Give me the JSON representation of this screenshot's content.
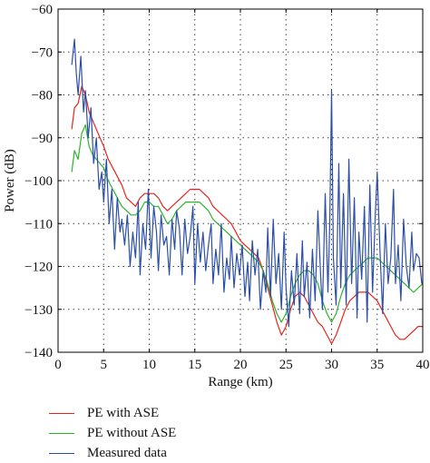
{
  "chart_data": {
    "type": "line",
    "title": "",
    "xlabel": "Range (km)",
    "ylabel": "Power (dB)",
    "xlim": [
      0,
      40
    ],
    "ylim": [
      -140,
      -60
    ],
    "xticks": [
      0,
      5,
      10,
      15,
      20,
      25,
      30,
      35,
      40
    ],
    "yticks": [
      -60,
      -70,
      -80,
      -90,
      -100,
      -110,
      -120,
      -130,
      -140
    ],
    "grid": true,
    "legend_placement": "bottom-left, below the axes",
    "series": [
      {
        "name": "PE with ASE",
        "color": "#e8231c",
        "x": [
          1.5,
          1.8,
          2.2,
          2.6,
          3.0,
          3.4,
          3.8,
          4.2,
          4.6,
          5.0,
          5.5,
          6.0,
          6.5,
          7.0,
          7.5,
          8.0,
          8.5,
          9.0,
          9.5,
          10.0,
          10.5,
          11.0,
          11.5,
          12.0,
          12.5,
          13.0,
          13.5,
          14.0,
          14.5,
          15.0,
          15.5,
          16.0,
          16.5,
          17.0,
          17.5,
          18.0,
          18.5,
          19.0,
          19.5,
          20.0,
          20.5,
          21.0,
          21.5,
          22.0,
          22.5,
          23.0,
          23.5,
          24.0,
          24.5,
          25.0,
          25.5,
          26.0,
          26.5,
          27.0,
          27.5,
          28.0,
          28.5,
          29.0,
          29.5,
          30.0,
          30.5,
          31.0,
          31.5,
          32.0,
          32.5,
          33.0,
          33.5,
          34.0,
          34.5,
          35.0,
          35.5,
          36.0,
          36.5,
          37.0,
          37.5,
          38.0,
          38.5,
          39.0,
          39.5,
          40.0
        ],
        "values": [
          -88,
          -83,
          -82,
          -78,
          -80,
          -84,
          -86,
          -88,
          -90,
          -92,
          -95,
          -97,
          -99,
          -101,
          -104,
          -105,
          -106,
          -104,
          -103,
          -103,
          -103,
          -104,
          -106,
          -107,
          -106,
          -105,
          -104,
          -103,
          -102,
          -102,
          -102,
          -103,
          -104,
          -106,
          -107,
          -108,
          -109,
          -110,
          -112,
          -114,
          -115,
          -116,
          -117,
          -118,
          -121,
          -125,
          -129,
          -133,
          -136,
          -134,
          -130,
          -127,
          -126,
          -127,
          -129,
          -131,
          -133,
          -134,
          -136,
          -138,
          -136,
          -133,
          -130,
          -128,
          -127,
          -126,
          -126,
          -126,
          -127,
          -128,
          -130,
          -132,
          -134,
          -136,
          -137,
          -137,
          -136,
          -135,
          -134,
          -134
        ]
      },
      {
        "name": "PE without ASE",
        "color": "#2bb52b",
        "x": [
          1.5,
          1.8,
          2.2,
          2.6,
          3.0,
          3.4,
          3.8,
          4.2,
          4.6,
          5.0,
          5.5,
          6.0,
          6.5,
          7.0,
          7.5,
          8.0,
          8.5,
          9.0,
          9.5,
          10.0,
          10.5,
          11.0,
          11.5,
          12.0,
          12.5,
          13.0,
          13.5,
          14.0,
          14.5,
          15.0,
          15.5,
          16.0,
          16.5,
          17.0,
          17.5,
          18.0,
          18.5,
          19.0,
          19.5,
          20.0,
          20.5,
          21.0,
          21.5,
          22.0,
          22.5,
          23.0,
          23.5,
          24.0,
          24.5,
          25.0,
          25.5,
          26.0,
          26.5,
          27.0,
          27.5,
          28.0,
          28.5,
          29.0,
          29.5,
          30.0,
          30.5,
          31.0,
          31.5,
          32.0,
          32.5,
          33.0,
          33.5,
          34.0,
          34.5,
          35.0,
          35.5,
          36.0,
          36.5,
          37.0,
          37.5,
          38.0,
          38.5,
          39.0,
          39.5,
          40.0
        ],
        "values": [
          -98,
          -93,
          -95,
          -89,
          -87,
          -92,
          -94,
          -95,
          -96,
          -97,
          -100,
          -102,
          -104,
          -106,
          -107,
          -108,
          -108,
          -107,
          -105,
          -105,
          -106,
          -106,
          -108,
          -110,
          -109,
          -107,
          -106,
          -105,
          -105,
          -105,
          -105,
          -106,
          -107,
          -109,
          -110,
          -111,
          -112,
          -113,
          -114,
          -115,
          -116,
          -117,
          -118,
          -119,
          -121,
          -124,
          -128,
          -131,
          -133,
          -131,
          -127,
          -124,
          -122,
          -121,
          -121,
          -122,
          -124,
          -128,
          -131,
          -133,
          -131,
          -127,
          -124,
          -122,
          -121,
          -120,
          -119,
          -118,
          -118,
          -118,
          -119,
          -120,
          -121,
          -122,
          -123,
          -124,
          -125,
          -126,
          -125,
          -124
        ]
      },
      {
        "name": "Measured data",
        "color": "#2b4fa8",
        "x": [
          1.5,
          1.8,
          2.0,
          2.2,
          2.5,
          2.8,
          3.0,
          3.3,
          3.6,
          3.9,
          4.2,
          4.5,
          4.8,
          5.0,
          5.3,
          5.6,
          5.9,
          6.2,
          6.5,
          6.8,
          7.0,
          7.3,
          7.6,
          7.9,
          8.2,
          8.5,
          8.8,
          9.0,
          9.3,
          9.6,
          9.9,
          10.2,
          10.5,
          10.8,
          11.0,
          11.3,
          11.6,
          11.9,
          12.2,
          12.5,
          12.8,
          13.0,
          13.3,
          13.6,
          13.9,
          14.2,
          14.5,
          14.8,
          15.0,
          15.3,
          15.6,
          15.9,
          16.2,
          16.5,
          16.8,
          17.0,
          17.3,
          17.6,
          17.9,
          18.2,
          18.5,
          18.8,
          19.0,
          19.3,
          19.6,
          19.9,
          20.2,
          20.5,
          20.8,
          21.0,
          21.3,
          21.6,
          21.9,
          22.2,
          22.5,
          22.8,
          23.0,
          23.3,
          23.6,
          23.9,
          24.2,
          24.5,
          24.8,
          25.0,
          25.3,
          25.6,
          25.9,
          26.2,
          26.5,
          26.8,
          27.0,
          27.3,
          27.6,
          27.9,
          28.2,
          28.5,
          28.8,
          29.0,
          29.3,
          29.6,
          29.8,
          30.0,
          30.2,
          30.5,
          30.8,
          31.0,
          31.3,
          31.6,
          31.9,
          32.2,
          32.5,
          32.8,
          33.0,
          33.3,
          33.6,
          33.9,
          34.2,
          34.5,
          34.8,
          35.0,
          35.3,
          35.6,
          35.9,
          36.2,
          36.5,
          36.8,
          37.0,
          37.3,
          37.6,
          37.9,
          38.2,
          38.5,
          38.8,
          39.0,
          39.3,
          39.6,
          39.9
        ],
        "values": [
          -73,
          -67,
          -75,
          -80,
          -71,
          -84,
          -79,
          -90,
          -83,
          -96,
          -90,
          -102,
          -98,
          -105,
          -95,
          -110,
          -102,
          -116,
          -104,
          -112,
          -109,
          -115,
          -108,
          -120,
          -112,
          -118,
          -105,
          -122,
          -110,
          -116,
          -102,
          -118,
          -106,
          -112,
          -121,
          -108,
          -115,
          -113,
          -122,
          -109,
          -116,
          -107,
          -111,
          -122,
          -109,
          -117,
          -113,
          -106,
          -124,
          -110,
          -119,
          -112,
          -121,
          -115,
          -110,
          -124,
          -116,
          -122,
          -110,
          -126,
          -118,
          -123,
          -113,
          -125,
          -117,
          -122,
          -115,
          -127,
          -119,
          -128,
          -114,
          -122,
          -116,
          -130,
          -121,
          -126,
          -111,
          -127,
          -109,
          -124,
          -117,
          -130,
          -112,
          -125,
          -134,
          -121,
          -129,
          -117,
          -131,
          -114,
          -127,
          -119,
          -132,
          -116,
          -128,
          -107,
          -122,
          -130,
          -103,
          -126,
          -110,
          -79,
          -118,
          -129,
          -96,
          -125,
          -103,
          -129,
          -95,
          -124,
          -104,
          -132,
          -112,
          -123,
          -106,
          -133,
          -101,
          -126,
          -108,
          -98,
          -116,
          -131,
          -110,
          -124,
          -118,
          -102,
          -124,
          -115,
          -128,
          -109,
          -120,
          -125,
          -112,
          -121,
          -117,
          -118,
          -124
        ]
      }
    ]
  }
}
